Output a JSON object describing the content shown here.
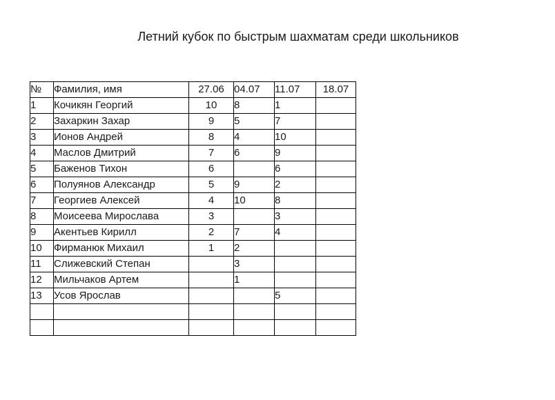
{
  "page": {
    "title": "Летний кубок по быстрым шахматам среди школьников"
  },
  "table": {
    "headers": [
      "№",
      "Фамилия, имя",
      "27.06",
      "04.07",
      "11.07",
      "18.07"
    ],
    "rows": [
      {
        "num": "1",
        "name": "Кочикян Георгий",
        "scores": [
          "10",
          "8",
          "1",
          ""
        ]
      },
      {
        "num": "2",
        "name": "Захаркин Захар",
        "scores": [
          "9",
          "5",
          "7",
          ""
        ]
      },
      {
        "num": "3",
        "name": "Ионов Андрей",
        "scores": [
          "8",
          "4",
          "10",
          ""
        ]
      },
      {
        "num": "4",
        "name": "Маслов Дмитрий",
        "scores": [
          "7",
          "6",
          "9",
          ""
        ]
      },
      {
        "num": "5",
        "name": "Баженов Тихон",
        "scores": [
          "6",
          "",
          "6",
          ""
        ]
      },
      {
        "num": "6",
        "name": "Полуянов Александр",
        "scores": [
          "5",
          "9",
          "2",
          ""
        ]
      },
      {
        "num": "7",
        "name": "Георгиев Алексей",
        "scores": [
          "4",
          "10",
          "8",
          ""
        ]
      },
      {
        "num": "8",
        "name": "Моисеева Мирослава",
        "scores": [
          "3",
          "",
          "3",
          ""
        ]
      },
      {
        "num": "9",
        "name": "Акентьев Кирилл",
        "scores": [
          "2",
          "7",
          "4",
          ""
        ]
      },
      {
        "num": "10",
        "name": "Фирманюк Михаил",
        "scores": [
          "1",
          "2",
          "",
          ""
        ]
      },
      {
        "num": "11",
        "name": "Слижевский Степан",
        "scores": [
          "",
          "3",
          "",
          ""
        ]
      },
      {
        "num": "12",
        "name": "Мильчаков Артем",
        "scores": [
          "",
          "1",
          "",
          ""
        ]
      },
      {
        "num": "13",
        "name": "Усов Ярослав",
        "scores": [
          "",
          "",
          "5",
          ""
        ]
      },
      {
        "num": "",
        "name": "",
        "scores": [
          "",
          "",
          "",
          ""
        ]
      },
      {
        "num": "",
        "name": "",
        "scores": [
          "",
          "",
          "",
          ""
        ]
      }
    ]
  }
}
